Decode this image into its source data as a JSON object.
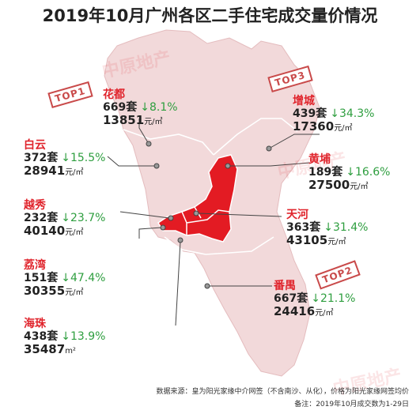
{
  "title": "2019年10月广州各区二手住宅成交量价情况",
  "watermark": "中原地产",
  "districts": [
    {
      "name": "花都",
      "volume": "669套",
      "change": "↓8.1%",
      "price": "13851",
      "unit": "元/㎡"
    },
    {
      "name": "增城",
      "volume": "439套",
      "change": "↓34.3%",
      "price": "17360",
      "unit": "元/㎡"
    },
    {
      "name": "白云",
      "volume": "372套",
      "change": "↓15.5%",
      "price": "28941",
      "unit": "元/㎡"
    },
    {
      "name": "黄埔",
      "volume": "189套",
      "change": "↓16.6%",
      "price": "27500",
      "unit": "元/㎡"
    },
    {
      "name": "越秀",
      "volume": "232套",
      "change": "↓23.7%",
      "price": "40140",
      "unit": "元/㎡"
    },
    {
      "name": "天河",
      "volume": "363套",
      "change": "↓31.4%",
      "price": "43105",
      "unit": "元/㎡"
    },
    {
      "name": "荔湾",
      "volume": "151套",
      "change": "↓47.4%",
      "price": "30355",
      "unit": "元/㎡"
    },
    {
      "name": "番禺",
      "volume": "667套",
      "change": "↓21.1%",
      "price": "24416",
      "unit": "元/㎡"
    },
    {
      "name": "海珠",
      "volume": "438套",
      "change": "↓13.9%",
      "price": "35487",
      "unit": "m²"
    }
  ],
  "badges": {
    "top1": "TOP1",
    "top2": "TOP2",
    "top3": "TOP3"
  },
  "footer": {
    "source": "数据来源：皇为阳光家缘中介网签（不含南沙、从化），价格为阳光家缘网签均价",
    "note": "备注：2019年10月成交数为1-29日"
  },
  "colors": {
    "accent": "#e0242c",
    "map_light": "#f2d9da",
    "map_dark": "#e31b23",
    "change_green": "#2e9e3f"
  }
}
